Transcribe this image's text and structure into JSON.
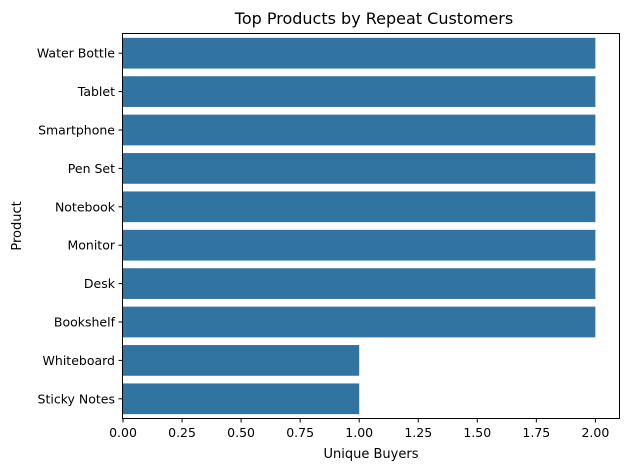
{
  "chart_data": {
    "type": "bar",
    "orientation": "horizontal",
    "title": "Top Products by Repeat Customers",
    "xlabel": "Unique Buyers",
    "ylabel": "Product",
    "categories": [
      "Water Bottle",
      "Tablet",
      "Smartphone",
      "Pen Set",
      "Notebook",
      "Monitor",
      "Desk",
      "Bookshelf",
      "Whiteboard",
      "Sticky Notes"
    ],
    "values": [
      2,
      2,
      2,
      2,
      2,
      2,
      2,
      2,
      1,
      1
    ],
    "xlim": [
      0,
      2.1
    ],
    "xticks": [
      "0.00",
      "0.25",
      "0.50",
      "0.75",
      "1.00",
      "1.25",
      "1.50",
      "1.75",
      "2.00"
    ],
    "bar_color": "#3274a1",
    "grid": false,
    "legend": "none"
  }
}
